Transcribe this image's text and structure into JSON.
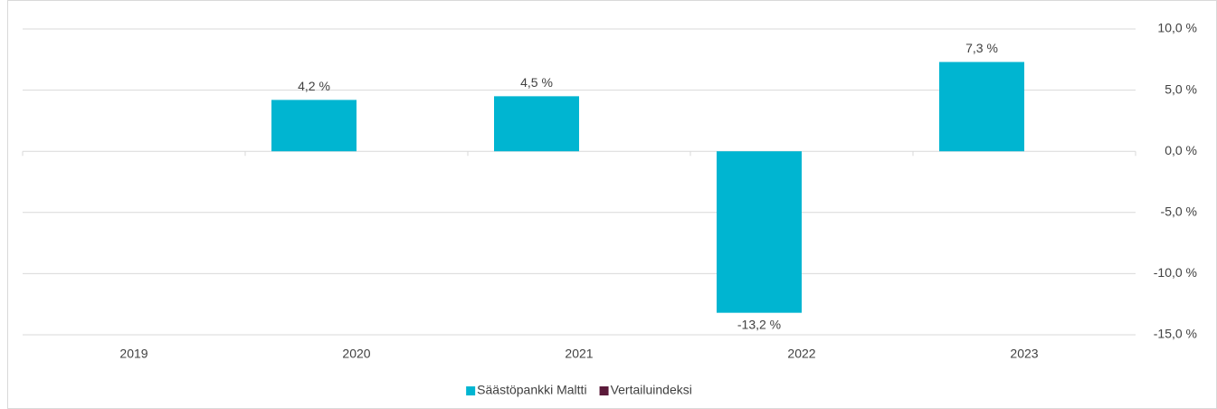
{
  "chart_data": {
    "type": "bar",
    "categories": [
      "2019",
      "2020",
      "2021",
      "2022",
      "2023"
    ],
    "series": [
      {
        "name": "Säästöpankki Maltti",
        "color": "#00b5d1",
        "values": [
          null,
          4.2,
          4.5,
          -13.2,
          7.3
        ],
        "value_labels": [
          null,
          "4,2 %",
          "4,5 %",
          "-13,2 %",
          "7,3 %"
        ]
      },
      {
        "name": "Vertailuindeksi",
        "color": "#5b1a3a",
        "values": [
          null,
          null,
          null,
          null,
          null
        ]
      }
    ],
    "ylim": [
      -15,
      10
    ],
    "yticks": [
      {
        "value": 10,
        "label": "10,0 %"
      },
      {
        "value": 5,
        "label": "5,0 %"
      },
      {
        "value": 0,
        "label": "0,0 %"
      },
      {
        "value": -5,
        "label": "-5,0 %"
      },
      {
        "value": -10,
        "label": "-10,0 %"
      },
      {
        "value": -15,
        "label": "-15,0 %"
      }
    ],
    "grid": true,
    "legend": "bottom"
  }
}
